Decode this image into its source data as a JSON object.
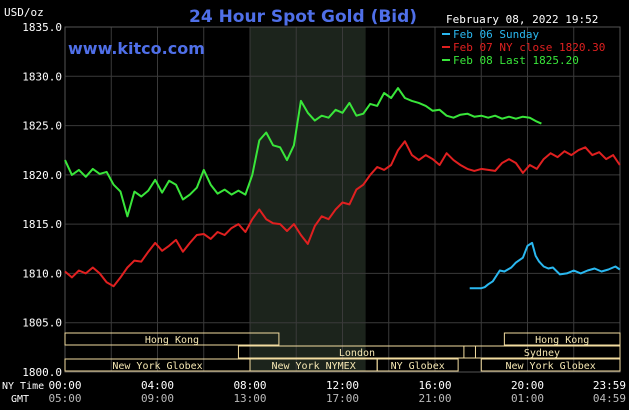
{
  "chart_data": {
    "type": "line",
    "title": "24 Hour Spot Gold (Bid)",
    "source": "www.kitco.com",
    "ylabel": "USD/oz",
    "date_label": "February 08, 2022 19:52",
    "ylim": [
      1800,
      1835
    ],
    "y_ticks": [
      "1835.0",
      "1830.0",
      "1825.0",
      "1820.0",
      "1815.0",
      "1810.0",
      "1805.0",
      "1800.0"
    ],
    "xlim": [
      0,
      24
    ],
    "x_ticks_ny": [
      "00:00",
      "04:00",
      "08:00",
      "12:00",
      "16:00",
      "20:00",
      "23:59"
    ],
    "x_ticks_gmt": [
      "05:00",
      "09:00",
      "13:00",
      "17:00",
      "21:00",
      "01:00",
      "04:59"
    ],
    "x_row_labels": [
      "NY Time",
      "GMT"
    ],
    "grid": true,
    "legend_position": "top-right",
    "colors": {
      "background": "#000000",
      "grid": "#3a3a3a",
      "title": "#4f6fe8",
      "highlight": "#1c241c",
      "session_box": "#f2dca0",
      "session_text": "#f4e6b2",
      "axis_text": "#ffffff"
    },
    "highlight_window": [
      8,
      13
    ],
    "sessions": [
      {
        "label": "Hong Kong",
        "start": 0,
        "end": 9.25
      },
      {
        "label": "London",
        "start": 7.5,
        "end": 17.75
      },
      {
        "label": "New York Globex",
        "start": 0,
        "end": 8
      },
      {
        "label": "New York NYMEX",
        "start": 8,
        "end": 13.5
      },
      {
        "label": "NY Globex",
        "start": 13.5,
        "end": 17
      },
      {
        "label": "Hong Kong",
        "start": 19,
        "end": 24
      },
      {
        "label": "Sydney",
        "start": 17.25,
        "end": 24
      },
      {
        "label": "New York Globex",
        "start": 18,
        "end": 24
      }
    ],
    "series": [
      {
        "name": "Feb 06 Sunday",
        "color": "#2ab8f0",
        "x": [
          17.5,
          18.0,
          18.15,
          18.3,
          18.5,
          18.8,
          19.0,
          19.3,
          19.5,
          19.8,
          20.0,
          20.2,
          20.35,
          20.5,
          20.7,
          20.9,
          21.1,
          21.4,
          21.7,
          22.0,
          22.3,
          22.6,
          22.9,
          23.2,
          23.5,
          23.8,
          23.99
        ],
        "y": [
          1808.5,
          1808.5,
          1808.6,
          1808.9,
          1809.2,
          1810.3,
          1810.2,
          1810.6,
          1811.1,
          1811.6,
          1812.8,
          1813.1,
          1811.8,
          1811.2,
          1810.7,
          1810.5,
          1810.6,
          1809.9,
          1810.0,
          1810.3,
          1810.0,
          1810.3,
          1810.5,
          1810.2,
          1810.4,
          1810.7,
          1810.4
        ]
      },
      {
        "name": "Feb 07 NY close 1820.30",
        "color": "#e02020",
        "x": [
          0,
          0.3,
          0.6,
          0.9,
          1.2,
          1.5,
          1.8,
          2.1,
          2.4,
          2.7,
          3.0,
          3.3,
          3.6,
          3.9,
          4.2,
          4.5,
          4.8,
          5.1,
          5.4,
          5.7,
          6.0,
          6.3,
          6.6,
          6.9,
          7.2,
          7.5,
          7.8,
          8.1,
          8.4,
          8.7,
          9.0,
          9.3,
          9.6,
          9.9,
          10.2,
          10.5,
          10.8,
          11.1,
          11.4,
          11.7,
          12.0,
          12.3,
          12.6,
          12.9,
          13.2,
          13.5,
          13.8,
          14.1,
          14.4,
          14.7,
          15.0,
          15.3,
          15.6,
          15.9,
          16.2,
          16.5,
          16.8,
          17.1,
          17.4,
          17.7,
          18.0,
          18.3,
          18.6,
          18.9,
          19.2,
          19.5,
          19.8,
          20.1,
          20.4,
          20.7,
          21.0,
          21.3,
          21.6,
          21.9,
          22.2,
          22.5,
          22.8,
          23.1,
          23.4,
          23.7,
          23.99
        ],
        "y": [
          1810.2,
          1809.6,
          1810.3,
          1810.0,
          1810.6,
          1810.0,
          1809.1,
          1808.7,
          1809.6,
          1810.6,
          1811.3,
          1811.2,
          1812.2,
          1813.1,
          1812.3,
          1812.8,
          1813.4,
          1812.2,
          1813.1,
          1813.9,
          1814.0,
          1813.5,
          1814.2,
          1813.9,
          1814.6,
          1815.0,
          1814.2,
          1815.5,
          1816.5,
          1815.5,
          1815.1,
          1815.0,
          1814.3,
          1815.0,
          1813.9,
          1813.0,
          1814.8,
          1815.8,
          1815.5,
          1816.5,
          1817.2,
          1817.0,
          1818.5,
          1819.0,
          1820.0,
          1820.8,
          1820.5,
          1821.0,
          1822.5,
          1823.4,
          1822.0,
          1821.5,
          1822.0,
          1821.6,
          1821.0,
          1822.2,
          1821.5,
          1821.0,
          1820.6,
          1820.4,
          1820.6,
          1820.5,
          1820.4,
          1821.2,
          1821.6,
          1821.2,
          1820.2,
          1821.0,
          1820.6,
          1821.6,
          1822.2,
          1821.8,
          1822.4,
          1822.0,
          1822.5,
          1822.8,
          1822.0,
          1822.3,
          1821.6,
          1822.0,
          1821.0
        ]
      },
      {
        "name": "Feb 08 Last 1825.20",
        "color": "#39e63a",
        "x": [
          0,
          0.3,
          0.6,
          0.9,
          1.2,
          1.5,
          1.8,
          2.1,
          2.4,
          2.7,
          3.0,
          3.3,
          3.6,
          3.9,
          4.2,
          4.5,
          4.8,
          5.1,
          5.4,
          5.7,
          6.0,
          6.3,
          6.6,
          6.9,
          7.2,
          7.5,
          7.8,
          8.1,
          8.4,
          8.7,
          9.0,
          9.3,
          9.6,
          9.9,
          10.2,
          10.5,
          10.8,
          11.1,
          11.4,
          11.7,
          12.0,
          12.3,
          12.6,
          12.9,
          13.2,
          13.5,
          13.8,
          14.1,
          14.4,
          14.7,
          15.0,
          15.3,
          15.6,
          15.9,
          16.2,
          16.5,
          16.8,
          17.1,
          17.4,
          17.7,
          18.0,
          18.3,
          18.6,
          18.9,
          19.2,
          19.5,
          19.8,
          20.1,
          20.4,
          20.6
        ],
        "y": [
          1821.5,
          1820.0,
          1820.5,
          1819.8,
          1820.6,
          1820.1,
          1820.3,
          1819.0,
          1818.3,
          1815.8,
          1818.3,
          1817.8,
          1818.4,
          1819.5,
          1818.2,
          1819.4,
          1819.0,
          1817.5,
          1818.0,
          1818.7,
          1820.5,
          1819.0,
          1818.1,
          1818.5,
          1818.0,
          1818.4,
          1818.0,
          1820.0,
          1823.5,
          1824.3,
          1823.0,
          1822.8,
          1821.5,
          1823.0,
          1827.5,
          1826.3,
          1825.5,
          1826.0,
          1825.8,
          1826.6,
          1826.3,
          1827.3,
          1826.0,
          1826.2,
          1827.2,
          1827.0,
          1828.3,
          1827.8,
          1828.8,
          1827.8,
          1827.5,
          1827.3,
          1827.0,
          1826.5,
          1826.6,
          1826.0,
          1825.8,
          1826.1,
          1826.2,
          1825.9,
          1826.0,
          1825.8,
          1826.0,
          1825.7,
          1825.9,
          1825.7,
          1825.9,
          1825.8,
          1825.4,
          1825.2
        ]
      }
    ]
  }
}
